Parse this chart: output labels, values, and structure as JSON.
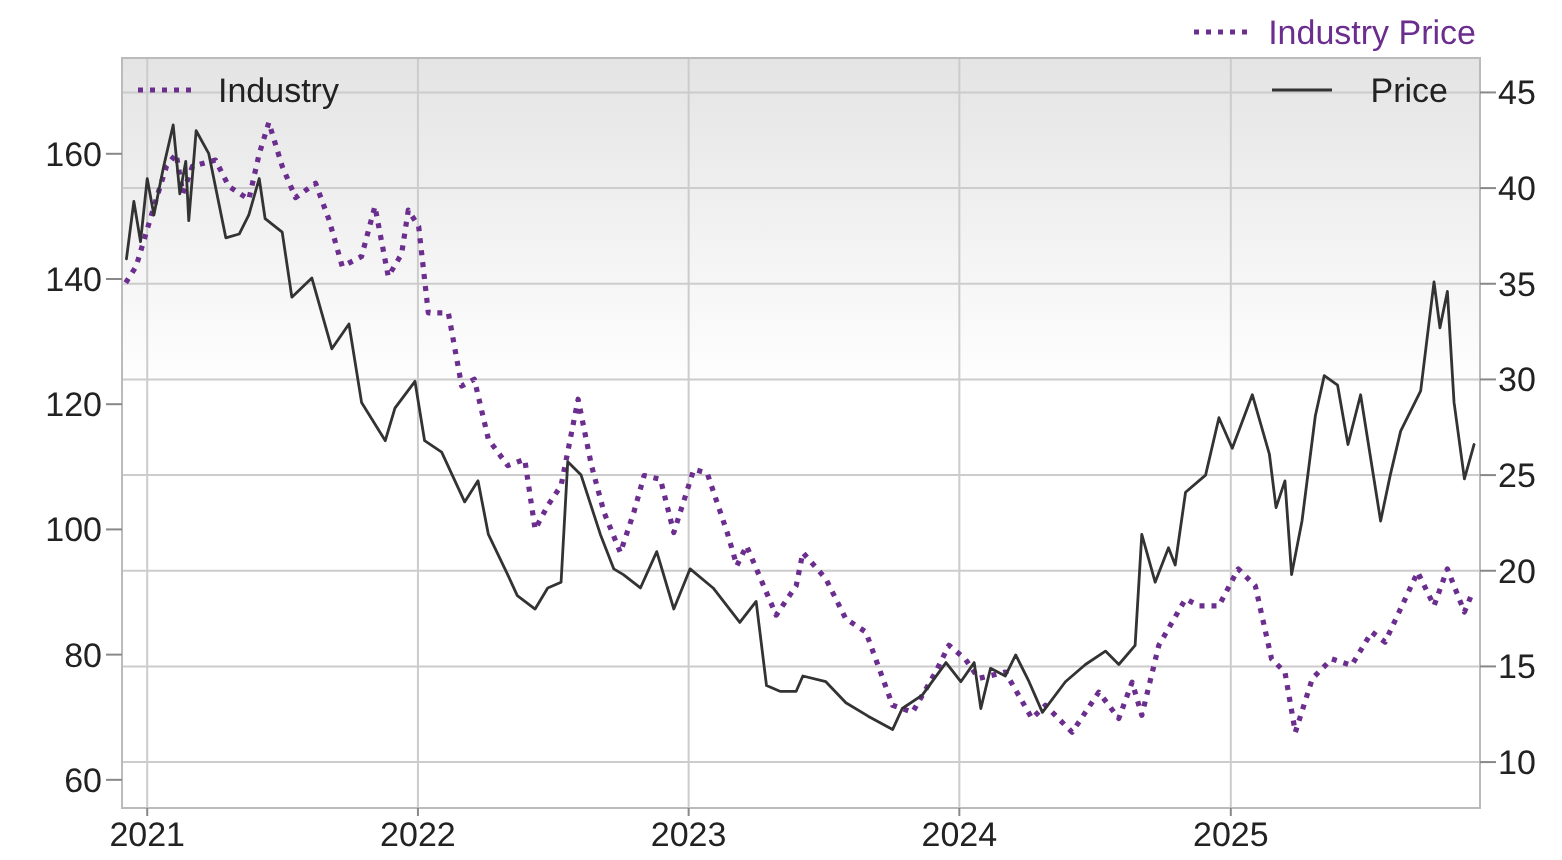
{
  "chart_data": {
    "type": "line",
    "ylabel": "Industry",
    "y2label": "Price",
    "xlim": [
      "2020-11-28",
      "2025-12-03"
    ],
    "xticks": [
      "2021",
      "2022",
      "2023",
      "2024",
      "2025"
    ],
    "ylim": [
      55.5,
      175.3
    ],
    "yticks": [
      60,
      80,
      100,
      120,
      140,
      160
    ],
    "y2lim": [
      7.6,
      46.8
    ],
    "y2ticks": [
      10,
      15,
      20,
      25,
      30,
      35,
      40,
      45
    ],
    "grid": true,
    "legend": "top right",
    "series": [
      {
        "name": "Industry Price",
        "color": "#6b2e8f",
        "line_style": "dotted",
        "axis": "y",
        "x": [
          "2020-12-03",
          "2020-12-17",
          "2021-01-13",
          "2021-01-27",
          "2021-02-09",
          "2021-02-18",
          "2021-03-03",
          "2021-04-03",
          "2021-04-21",
          "2021-05-18",
          "2021-06-01",
          "2021-06-14",
          "2021-07-02",
          "2021-07-20",
          "2021-08-16",
          "2021-09-03",
          "2021-09-21",
          "2021-10-17",
          "2021-11-04",
          "2021-11-22",
          "2021-12-10",
          "2021-12-19",
          "2022-01-02",
          "2022-01-15",
          "2022-02-11",
          "2022-03-01",
          "2022-03-18",
          "2022-04-06",
          "2022-05-02",
          "2022-05-25",
          "2022-06-08",
          "2022-06-25",
          "2022-07-13",
          "2022-08-05",
          "2022-08-23",
          "2022-09-09",
          "2022-10-01",
          "2022-10-19",
          "2022-11-02",
          "2022-11-24",
          "2022-12-12",
          "2023-01-08",
          "2023-01-26",
          "2023-02-22",
          "2023-03-07",
          "2023-03-20",
          "2023-04-29",
          "2023-05-26",
          "2023-06-04",
          "2023-07-05",
          "2023-08-01",
          "2023-08-28",
          "2023-10-03",
          "2023-10-30",
          "2023-11-30",
          "2023-12-18",
          "2024-01-09",
          "2024-01-27",
          "2024-03-03",
          "2024-04-08",
          "2024-04-26",
          "2024-06-01",
          "2024-07-07",
          "2024-08-03",
          "2024-08-21",
          "2024-09-03",
          "2024-09-26",
          "2024-11-01",
          "2024-11-19",
          "2024-12-16",
          "2025-01-11",
          "2025-02-03",
          "2025-02-25",
          "2025-03-15",
          "2025-03-29",
          "2025-04-21",
          "2025-05-17",
          "2025-06-13",
          "2025-07-10",
          "2025-07-28",
          "2025-09-10",
          "2025-10-02",
          "2025-10-20",
          "2025-11-12",
          "2025-11-21"
        ],
        "values": [
          139.4,
          142,
          152.7,
          158,
          160,
          153.7,
          158,
          159,
          154.8,
          152.7,
          160,
          165,
          158,
          153,
          155.3,
          149.5,
          142,
          143.6,
          151.6,
          140.4,
          144,
          151,
          148.4,
          134.6,
          134.6,
          122.9,
          124,
          114.4,
          110.2,
          111.2,
          100,
          103.8,
          107,
          120.8,
          110.2,
          102.7,
          96.3,
          102.7,
          108.6,
          108,
          99.5,
          109.6,
          109,
          99.5,
          94.2,
          97.4,
          86.3,
          91,
          96.3,
          92.1,
          85.7,
          83.6,
          71.9,
          70.8,
          77.2,
          81.5,
          79.3,
          76.2,
          77.2,
          69.8,
          71.9,
          67.6,
          74,
          69.8,
          75.6,
          70.3,
          81.5,
          88.9,
          87.8,
          87.8,
          93.7,
          91,
          79.3,
          77.2,
          67.6,
          76.2,
          79.3,
          78.3,
          83.6,
          82,
          93.2,
          87.8,
          93.7,
          86.8,
          89.4
        ]
      },
      {
        "color": "#333333",
        "line_style": "solid",
        "axis": "y2",
        "x": [
          "2020-12-04",
          "2020-12-14",
          "2020-12-23",
          "2021-01-01",
          "2021-01-10",
          "2021-01-23",
          "2021-02-05",
          "2021-02-14",
          "2021-02-22",
          "2021-02-26",
          "2021-03-08",
          "2021-03-25",
          "2021-04-17",
          "2021-05-05",
          "2021-05-18",
          "2021-06-01",
          "2021-06-09",
          "2021-07-02",
          "2021-07-15",
          "2021-08-11",
          "2021-09-07",
          "2021-09-30",
          "2021-10-17",
          "2021-11-18",
          "2021-12-01",
          "2021-12-28",
          "2022-01-10",
          "2022-02-02",
          "2022-03-05",
          "2022-03-23",
          "2022-04-06",
          "2022-05-02",
          "2022-05-15",
          "2022-06-08",
          "2022-06-25",
          "2022-07-13",
          "2022-07-22",
          "2022-08-09",
          "2022-09-04",
          "2022-09-22",
          "2022-10-05",
          "2022-10-28",
          "2022-11-19",
          "2022-12-12",
          "2023-01-03",
          "2023-02-03",
          "2023-03-11",
          "2023-04-02",
          "2023-04-16",
          "2023-05-04",
          "2023-05-26",
          "2023-06-04",
          "2023-07-05",
          "2023-08-01",
          "2023-08-31",
          "2023-10-03",
          "2023-10-16",
          "2023-11-12",
          "2023-12-14",
          "2024-01-03",
          "2024-01-21",
          "2024-01-30",
          "2024-02-12",
          "2024-03-03",
          "2024-03-17",
          "2024-04-04",
          "2024-04-22",
          "2024-05-23",
          "2024-06-19",
          "2024-07-16",
          "2024-08-03",
          "2024-08-25",
          "2024-09-03",
          "2024-09-21",
          "2024-10-09",
          "2024-10-18",
          "2024-11-01",
          "2024-11-28",
          "2024-12-16",
          "2025-01-03",
          "2025-01-30",
          "2025-02-22",
          "2025-03-03",
          "2025-03-15",
          "2025-03-24",
          "2025-04-07",
          "2025-04-25",
          "2025-05-07",
          "2025-05-25",
          "2025-06-08",
          "2025-06-25",
          "2025-07-22",
          "2025-08-04",
          "2025-08-18",
          "2025-09-14",
          "2025-10-02",
          "2025-10-10",
          "2025-10-20",
          "2025-10-29",
          "2025-11-12",
          "2025-11-25"
        ],
        "values": [
          36.3,
          39.3,
          37.2,
          40.5,
          38.6,
          41.1,
          43.3,
          39.7,
          41.4,
          38.3,
          43,
          41.8,
          37.4,
          37.6,
          38.6,
          40.5,
          38.4,
          37.7,
          34.3,
          35.3,
          31.6,
          32.9,
          28.8,
          26.8,
          28.5,
          29.9,
          26.8,
          26.2,
          23.6,
          24.7,
          21.9,
          19.8,
          18.7,
          18,
          19.1,
          19.4,
          25.7,
          25,
          21.9,
          20.1,
          19.8,
          19.1,
          21,
          18,
          20.1,
          19.1,
          17.3,
          18.4,
          14,
          13.7,
          13.7,
          14.5,
          14.2,
          13.1,
          12.4,
          11.7,
          12.8,
          13.5,
          15.2,
          14.2,
          15.2,
          12.8,
          14.9,
          14.5,
          15.6,
          14.2,
          12.6,
          14.2,
          15.1,
          15.8,
          15.1,
          16.1,
          21.9,
          19.4,
          21.2,
          20.3,
          24.1,
          25,
          28,
          26.4,
          29.2,
          26.1,
          23.3,
          24.7,
          19.8,
          22.6,
          28.1,
          30.2,
          29.7,
          26.6,
          29.2,
          22.6,
          25,
          27.3,
          29.4,
          35.1,
          32.7,
          34.6,
          28.8,
          24.8,
          26.6
        ]
      }
    ]
  }
}
